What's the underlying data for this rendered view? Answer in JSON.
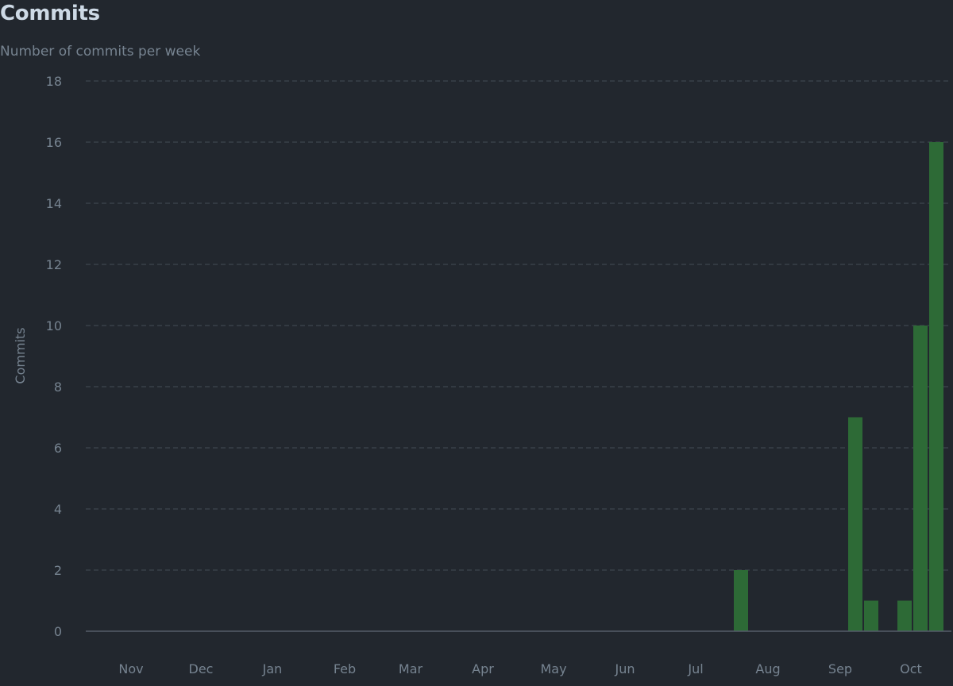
{
  "header": {
    "title": "Commits",
    "subtitle": "Number of commits per week"
  },
  "colors": {
    "background": "#22272e",
    "bar": "#2d6a36",
    "grid": "#444c56",
    "text": "#768390",
    "title": "#cdd9e5"
  },
  "chart_data": {
    "type": "bar",
    "title": "Commits",
    "subtitle": "Number of commits per week",
    "ylabel": "Commits",
    "xlabel": "",
    "ylim": [
      0,
      18
    ],
    "y_ticks": [
      0,
      2,
      4,
      6,
      8,
      10,
      12,
      14,
      16,
      18
    ],
    "grid": true,
    "x_tick_labels": [
      "Nov",
      "Dec",
      "Jan",
      "Feb",
      "Mar",
      "Apr",
      "May",
      "Jun",
      "Jul",
      "Aug",
      "Sep",
      "Oct"
    ],
    "bars": [
      {
        "week": "Jul wk4",
        "value": 2
      },
      {
        "week": "Sep wk1",
        "value": 7
      },
      {
        "week": "Sep wk2",
        "value": 1
      },
      {
        "week": "Sep wk5",
        "value": 1
      },
      {
        "week": "Oct wk1",
        "value": 10
      },
      {
        "week": "Oct wk2",
        "value": 16
      }
    ]
  }
}
